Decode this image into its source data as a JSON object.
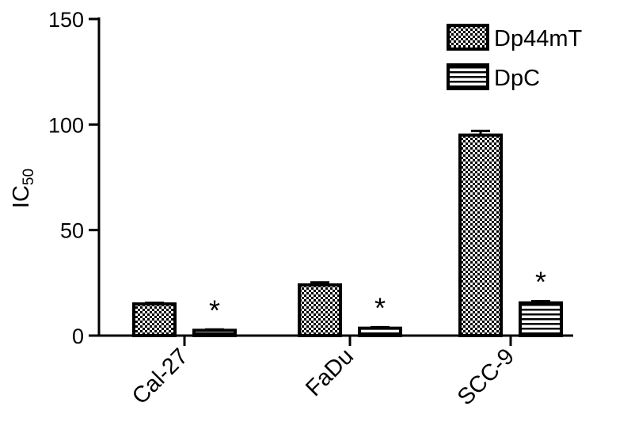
{
  "chart_data": {
    "type": "bar",
    "ylabel_main": "IC",
    "ylabel_sub": "50",
    "xlabel": "",
    "ylim": [
      0,
      150
    ],
    "yticks": [
      0,
      50,
      100,
      150
    ],
    "categories": [
      "Cal-27",
      "FaDu",
      "SCC-9"
    ],
    "series": [
      {
        "name": "Dp44mT",
        "pattern": "checker",
        "values": [
          15,
          24,
          95
        ],
        "errors": [
          0.5,
          1.2,
          2.0
        ]
      },
      {
        "name": "DpC",
        "pattern": "stripes",
        "values": [
          2.5,
          3.5,
          15.5
        ],
        "errors": [
          0.4,
          0.5,
          0.8
        ]
      }
    ],
    "annotations": [
      "*",
      "*",
      "*"
    ],
    "legend_position": "top-right",
    "grid": false
  }
}
